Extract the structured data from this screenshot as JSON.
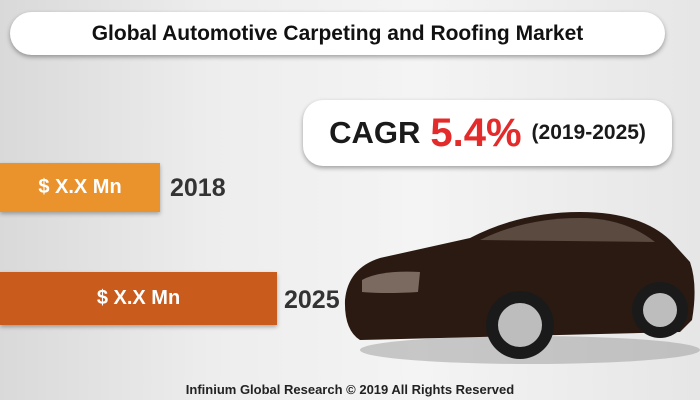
{
  "header": {
    "title": "Global Automotive Carpeting and Roofing Market"
  },
  "cagr": {
    "label": "CAGR",
    "value": "5.4%",
    "period": "(2019-2025)"
  },
  "bars": [
    {
      "label": "$ X.X Mn",
      "year": "2018"
    },
    {
      "label": "$ X.X Mn",
      "year": "2025"
    }
  ],
  "footer": {
    "text": "Infinium Global Research © 2019 All Rights Reserved"
  }
}
